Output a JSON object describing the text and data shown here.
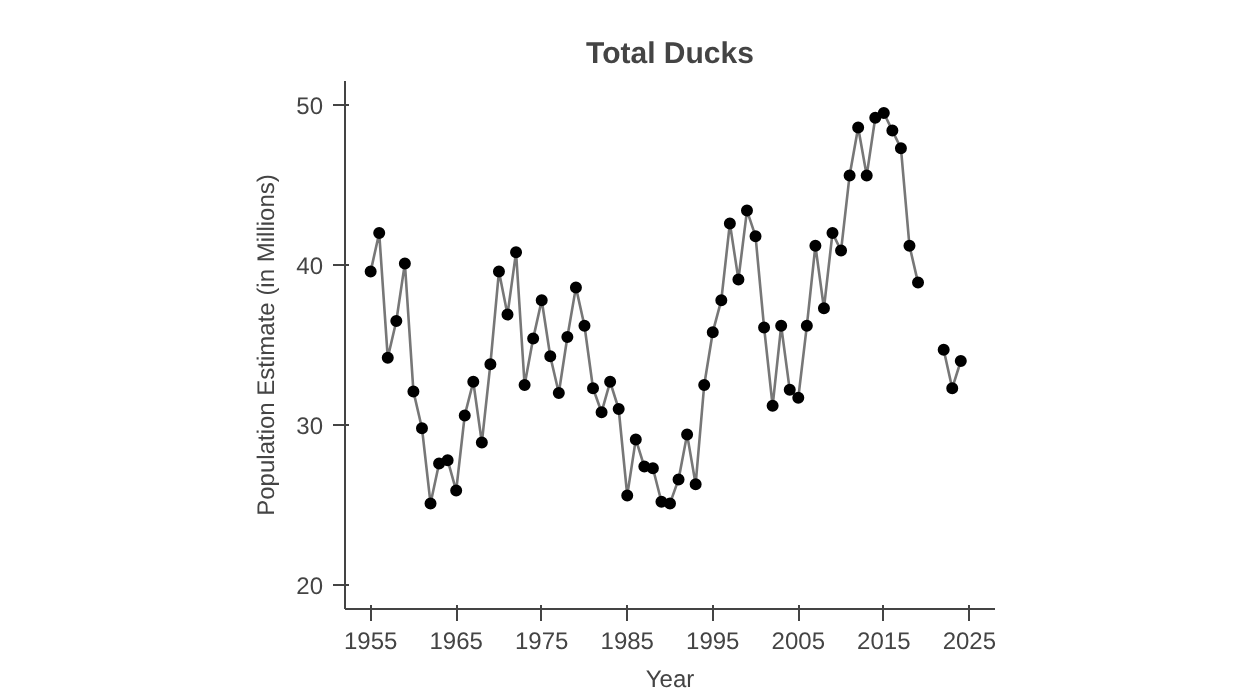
{
  "chart_data": {
    "type": "line",
    "title": "Total Ducks",
    "xlabel": "Year",
    "ylabel": "Population Estimate (in Millions)",
    "x": [
      1955,
      1956,
      1957,
      1958,
      1959,
      1960,
      1961,
      1962,
      1963,
      1964,
      1965,
      1966,
      1967,
      1968,
      1969,
      1970,
      1971,
      1972,
      1973,
      1974,
      1975,
      1976,
      1977,
      1978,
      1979,
      1980,
      1981,
      1982,
      1983,
      1984,
      1985,
      1986,
      1987,
      1988,
      1989,
      1990,
      1991,
      1992,
      1993,
      1994,
      1995,
      1996,
      1997,
      1998,
      1999,
      2000,
      2001,
      2002,
      2003,
      2004,
      2005,
      2006,
      2007,
      2008,
      2009,
      2010,
      2011,
      2012,
      2013,
      2014,
      2015,
      2016,
      2017,
      2018,
      2019,
      2020,
      2021,
      2022,
      2023,
      2024
    ],
    "series": [
      {
        "color": "#000000",
        "values": [
          39.6,
          42.0,
          34.2,
          36.5,
          40.1,
          32.1,
          29.8,
          25.1,
          27.6,
          27.8,
          25.9,
          30.6,
          32.7,
          28.9,
          33.8,
          39.6,
          36.9,
          40.8,
          32.5,
          35.4,
          37.8,
          34.3,
          32.0,
          35.5,
          38.6,
          36.2,
          32.3,
          30.8,
          32.7,
          31.0,
          25.6,
          29.1,
          27.4,
          27.3,
          25.2,
          25.1,
          26.6,
          29.4,
          26.3,
          32.5,
          35.8,
          37.8,
          42.6,
          39.1,
          43.4,
          41.8,
          36.1,
          31.2,
          36.2,
          32.2,
          31.7,
          36.2,
          41.2,
          37.3,
          42.0,
          40.9,
          45.6,
          48.6,
          45.6,
          49.2,
          49.5,
          48.4,
          47.3,
          41.2,
          38.9,
          null,
          null,
          34.7,
          32.3,
          34.0
        ]
      }
    ],
    "xlim": [
      1952,
      2028
    ],
    "ylim": [
      18.5,
      51.5
    ],
    "xticks": [
      1955,
      1965,
      1975,
      1985,
      1995,
      2005,
      2015,
      2025
    ],
    "yticks": [
      20,
      30,
      40,
      50
    ],
    "grid": false,
    "marker": "circle",
    "line_style": "solid"
  }
}
